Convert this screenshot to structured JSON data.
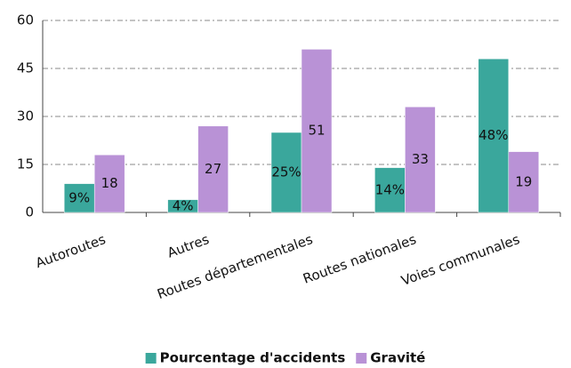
{
  "chart_data": {
    "type": "bar",
    "categories": [
      "Autoroutes",
      "Autres",
      "Routes départementales",
      "Routes nationales",
      "Voies communales"
    ],
    "series": [
      {
        "name": "Pourcentage d'accidents",
        "color": "#3aa79c",
        "values": [
          9,
          4,
          25,
          14,
          48
        ],
        "value_labels": [
          "9%",
          "4%",
          "25%",
          "14%",
          "48%"
        ]
      },
      {
        "name": "Gravité",
        "color": "#b992d6",
        "values": [
          18,
          27,
          51,
          33,
          19
        ]
      }
    ],
    "ylim": [
      0,
      60
    ],
    "yticks": [
      0,
      15,
      30,
      45,
      60
    ],
    "grid": true,
    "legend": "bottom"
  }
}
